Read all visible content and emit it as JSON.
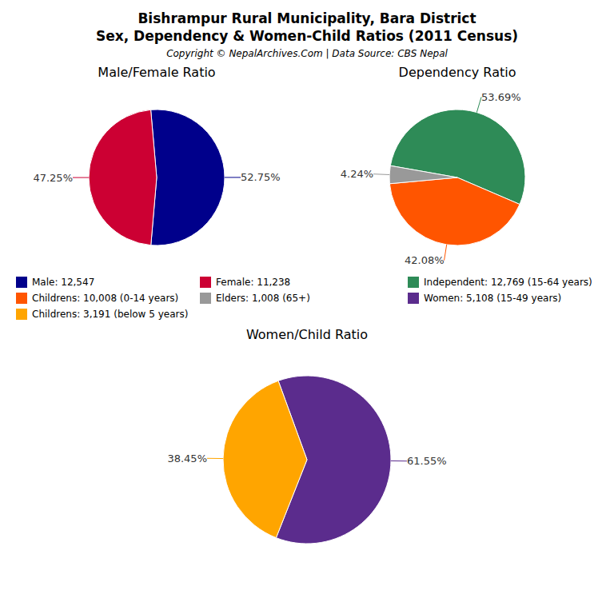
{
  "title": "Bishrampur Rural Municipality, Bara District\nSex, Dependency & Women-Child Ratios (2011 Census)",
  "subtitle": "Copyright © NepalArchives.Com | Data Source: CBS Nepal",
  "chart_data": [
    {
      "type": "pie",
      "title": "Male/Female Ratio",
      "categories": [
        "Male: 12,547",
        "Female: 11,238"
      ],
      "values": [
        52.75,
        47.25
      ],
      "value_labels": [
        "52.75%",
        "47.25%"
      ],
      "colors": [
        "#00008B",
        "#CC0033"
      ],
      "data_labels": true
    },
    {
      "type": "pie",
      "title": "Dependency Ratio",
      "categories": [
        "Independent: 12,769 (15-64 years)",
        "Childrens: 10,008 (0-14 years)",
        "Elders: 1,008 (65+)"
      ],
      "values": [
        53.69,
        42.08,
        4.24
      ],
      "value_labels": [
        "53.69%",
        "42.08%",
        "4.24%"
      ],
      "colors": [
        "#2E8B57",
        "#FF5500",
        "#999999"
      ],
      "data_labels": true
    },
    {
      "type": "pie",
      "title": "Women/Child Ratio",
      "categories": [
        "Women: 5,108 (15-49 years)",
        "Childrens: 3,191 (below 5 years)"
      ],
      "values": [
        61.55,
        38.45
      ],
      "value_labels": [
        "61.55%",
        "38.45%"
      ],
      "colors": [
        "#5B2C8D",
        "#FFA500"
      ],
      "data_labels": true
    }
  ]
}
